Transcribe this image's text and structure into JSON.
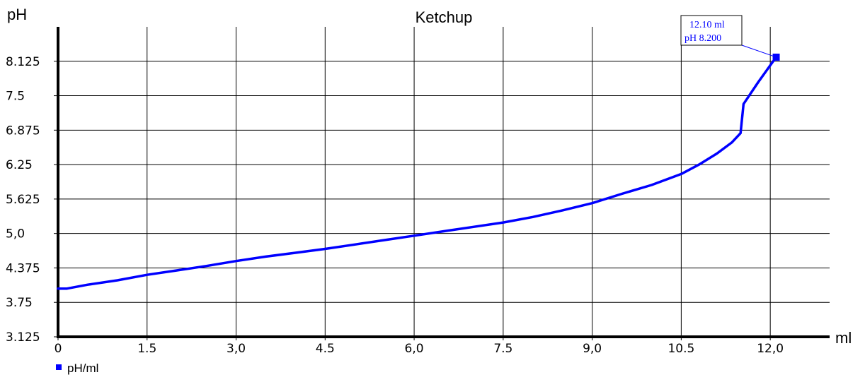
{
  "chart_data": {
    "type": "line",
    "title": "Ketchup",
    "xlabel": "ml",
    "ylabel": "pH",
    "xlim": [
      0,
      13.0
    ],
    "ylim": [
      3.125,
      8.75
    ],
    "x_ticks": [
      0,
      1.5,
      3.0,
      4.5,
      6.0,
      7.5,
      9.0,
      10.5,
      12.0
    ],
    "x_tick_labels": [
      "0",
      "1.5",
      "3,0",
      "4.5",
      "6,0",
      "7.5",
      "9,0",
      "10.5",
      "12,0"
    ],
    "y_ticks": [
      3.125,
      3.75,
      4.375,
      5.0,
      5.625,
      6.25,
      6.875,
      7.5,
      8.125
    ],
    "y_tick_labels": [
      "3.125",
      "3.75",
      "4.375",
      "5,0",
      "5.625",
      "6.25",
      "6.875",
      "7.5",
      "8.125"
    ],
    "grid": true,
    "line_color": "#0000ff",
    "series": [
      {
        "name": "pH/ml",
        "x": [
          0,
          0.15,
          0.5,
          1.0,
          1.5,
          2.0,
          2.5,
          3.0,
          3.5,
          4.0,
          4.5,
          5.0,
          5.5,
          6.0,
          6.5,
          7.0,
          7.5,
          8.0,
          8.5,
          9.0,
          9.5,
          10.0,
          10.5,
          10.8,
          11.1,
          11.35,
          11.5,
          11.55,
          11.8,
          12.1
        ],
        "y": [
          4.0,
          4.0,
          4.07,
          4.15,
          4.25,
          4.33,
          4.41,
          4.5,
          4.58,
          4.65,
          4.72,
          4.8,
          4.88,
          4.96,
          5.04,
          5.12,
          5.2,
          5.3,
          5.42,
          5.55,
          5.72,
          5.88,
          6.08,
          6.25,
          6.45,
          6.65,
          6.82,
          7.35,
          7.75,
          8.2
        ]
      }
    ],
    "annotation": {
      "line1": "12.10 ml",
      "line2": "pH 8.200",
      "x": 12.1,
      "y": 8.2
    },
    "legend_position": "bottom-left"
  }
}
